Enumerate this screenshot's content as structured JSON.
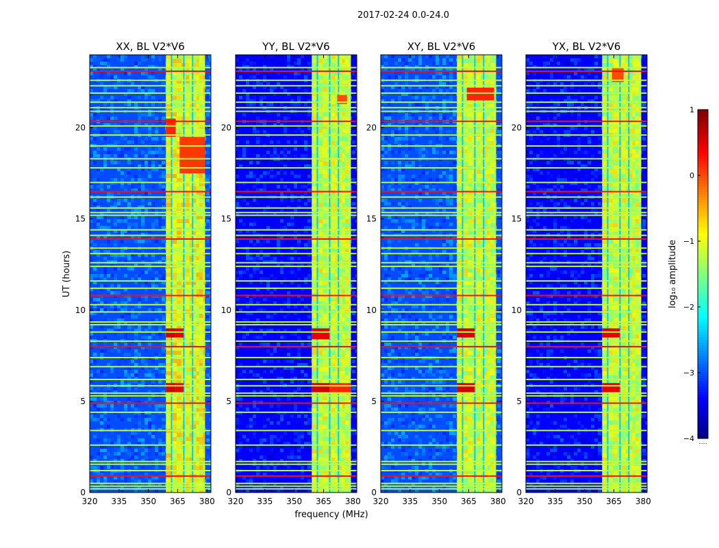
{
  "figure": {
    "suptitle": "2017-02-24 0.0-24.0",
    "shared_ylabel": "UT (hours)",
    "shared_xlabel": "frequency (MHz)"
  },
  "colorbar": {
    "label": "log₁₀ amplitude",
    "ticks": [
      1,
      0,
      -1,
      -2,
      -3,
      -4
    ],
    "tick_labels": [
      "1",
      "0",
      "−1",
      "−2",
      "−3",
      "−4"
    ],
    "range": [
      -4,
      1
    ],
    "colormap": "jet",
    "extra_mark": "....."
  },
  "chart_data": [
    {
      "type": "heatmap",
      "title": "XX, BL V2*V6",
      "xlabel": "frequency (MHz)",
      "ylabel": "UT (hours)",
      "xlim": [
        320,
        382
      ],
      "ylim": [
        0,
        24
      ],
      "xticks": [
        320,
        335,
        350,
        365,
        380
      ],
      "yticks": [
        0,
        5,
        10,
        15,
        20
      ],
      "background_level": -3.0,
      "strong_band_mhz": [
        359,
        379
      ],
      "hot_patches": [
        {
          "f": [
            359,
            364
          ],
          "t": [
            5.5,
            6.0
          ],
          "v": 0.6
        },
        {
          "f": [
            364,
            368
          ],
          "t": [
            5.5,
            6.0
          ],
          "v": 0.5
        },
        {
          "f": [
            359,
            364
          ],
          "t": [
            8.5,
            9.0
          ],
          "v": 0.6
        },
        {
          "f": [
            364,
            368
          ],
          "t": [
            8.5,
            9.0
          ],
          "v": 0.5
        },
        {
          "f": [
            359,
            364
          ],
          "t": [
            19.5,
            20.5
          ],
          "v": 0.2
        },
        {
          "f": [
            366,
            379
          ],
          "t": [
            17.5,
            19.5
          ],
          "v": 0.1
        }
      ]
    },
    {
      "type": "heatmap",
      "title": "YY, BL V2*V6",
      "xlabel": "frequency (MHz)",
      "ylabel": "",
      "xlim": [
        320,
        382
      ],
      "ylim": [
        0,
        24
      ],
      "xticks": [
        320,
        335,
        350,
        365,
        380
      ],
      "yticks": [
        0,
        5,
        10,
        15,
        20
      ],
      "background_level": -3.4,
      "strong_band_mhz": [
        359,
        379
      ],
      "hot_patches": [
        {
          "f": [
            359,
            368
          ],
          "t": [
            5.5,
            6.0
          ],
          "v": 0.6
        },
        {
          "f": [
            368,
            379
          ],
          "t": [
            5.5,
            6.0
          ],
          "v": 0.2
        },
        {
          "f": [
            359,
            368
          ],
          "t": [
            8.4,
            9.0
          ],
          "v": 0.5
        },
        {
          "f": [
            372,
            377
          ],
          "t": [
            21.3,
            21.8
          ],
          "v": 0.0
        }
      ]
    },
    {
      "type": "heatmap",
      "title": "XY, BL V2*V6",
      "xlabel": "frequency (MHz)",
      "ylabel": "",
      "xlim": [
        320,
        382
      ],
      "ylim": [
        0,
        24
      ],
      "xticks": [
        320,
        335,
        350,
        365,
        380
      ],
      "yticks": [
        0,
        5,
        10,
        15,
        20
      ],
      "background_level": -3.0,
      "strong_band_mhz": [
        359,
        379
      ],
      "hot_patches": [
        {
          "f": [
            359,
            368
          ],
          "t": [
            5.5,
            6.0
          ],
          "v": 0.6
        },
        {
          "f": [
            359,
            368
          ],
          "t": [
            8.5,
            9.0
          ],
          "v": 0.6
        },
        {
          "f": [
            364,
            378
          ],
          "t": [
            21.5,
            22.2
          ],
          "v": 0.2
        }
      ]
    },
    {
      "type": "heatmap",
      "title": "YX, BL V2*V6",
      "xlabel": "frequency (MHz)",
      "ylabel": "",
      "xlim": [
        320,
        382
      ],
      "ylim": [
        0,
        24
      ],
      "xticks": [
        320,
        335,
        350,
        365,
        380
      ],
      "yticks": [
        0,
        5,
        10,
        15,
        20
      ],
      "background_level": -3.4,
      "strong_band_mhz": [
        359,
        379
      ],
      "hot_patches": [
        {
          "f": [
            359,
            368
          ],
          "t": [
            5.5,
            6.0
          ],
          "v": 0.5
        },
        {
          "f": [
            359,
            368
          ],
          "t": [
            8.5,
            9.0
          ],
          "v": 0.5
        },
        {
          "f": [
            364,
            370
          ],
          "t": [
            22.5,
            23.3
          ],
          "v": 0.0
        }
      ]
    }
  ],
  "rfi_rows_hours": [
    0.2,
    0.35,
    0.5,
    0.9,
    1.2,
    1.55,
    1.7,
    2.6,
    3.4,
    4.4,
    4.9,
    5.3,
    5.45,
    5.85,
    6.2,
    6.9,
    7.4,
    8.0,
    8.3,
    8.8,
    9.2,
    9.35,
    9.9,
    10.3,
    10.8,
    11.2,
    11.6,
    12.4,
    12.6,
    13.1,
    13.4,
    13.9,
    14.1,
    14.4,
    15.2,
    15.35,
    15.6,
    16.2,
    16.5,
    17.0,
    17.8,
    18.3,
    19.0,
    19.6,
    20.1,
    20.35,
    20.9,
    21.1,
    21.4,
    21.9,
    22.3,
    22.6,
    23.1,
    23.3
  ],
  "band_channels_mhz": [
    359,
    362,
    364.5,
    367,
    369,
    371,
    373,
    374.5,
    376,
    378,
    379
  ],
  "band_gaps_mhz": [
    361.5,
    367.8,
    372.3
  ]
}
